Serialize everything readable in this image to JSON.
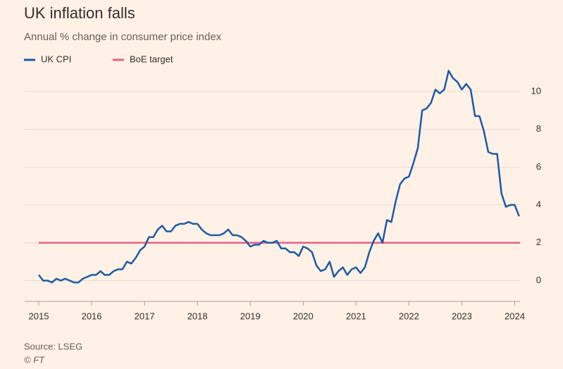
{
  "chart_data": {
    "type": "line",
    "title": "UK inflation falls",
    "subtitle": "Annual % change in consumer price index",
    "source": "Source: LSEG",
    "credit": "© FT",
    "xlim": [
      2015,
      2024.1
    ],
    "xticks": [
      2015,
      2016,
      2017,
      2018,
      2019,
      2020,
      2021,
      2022,
      2023,
      2024
    ],
    "ylim": [
      -1.1,
      11.3
    ],
    "yticks": [
      0,
      2,
      4,
      6,
      8,
      10
    ],
    "grid": true,
    "series": [
      {
        "name": "UK CPI",
        "color": "#1d5aa6",
        "x": [
          2015.0,
          2015.083,
          2015.167,
          2015.25,
          2015.333,
          2015.417,
          2015.5,
          2015.583,
          2015.667,
          2015.75,
          2015.833,
          2015.917,
          2016.0,
          2016.083,
          2016.167,
          2016.25,
          2016.333,
          2016.417,
          2016.5,
          2016.583,
          2016.667,
          2016.75,
          2016.833,
          2016.917,
          2017.0,
          2017.083,
          2017.167,
          2017.25,
          2017.333,
          2017.417,
          2017.5,
          2017.583,
          2017.667,
          2017.75,
          2017.833,
          2017.917,
          2018.0,
          2018.083,
          2018.167,
          2018.25,
          2018.333,
          2018.417,
          2018.5,
          2018.583,
          2018.667,
          2018.75,
          2018.833,
          2018.917,
          2019.0,
          2019.083,
          2019.167,
          2019.25,
          2019.333,
          2019.417,
          2019.5,
          2019.583,
          2019.667,
          2019.75,
          2019.833,
          2019.917,
          2020.0,
          2020.083,
          2020.167,
          2020.25,
          2020.333,
          2020.417,
          2020.5,
          2020.583,
          2020.667,
          2020.75,
          2020.833,
          2020.917,
          2021.0,
          2021.083,
          2021.167,
          2021.25,
          2021.333,
          2021.417,
          2021.5,
          2021.583,
          2021.667,
          2021.75,
          2021.833,
          2021.917,
          2022.0,
          2022.083,
          2022.167,
          2022.25,
          2022.333,
          2022.417,
          2022.5,
          2022.583,
          2022.667,
          2022.75,
          2022.833,
          2022.917,
          2023.0,
          2023.083,
          2023.167,
          2023.25,
          2023.333,
          2023.417,
          2023.5,
          2023.583,
          2023.667,
          2023.75,
          2023.833,
          2023.917,
          2024.0,
          2024.083
        ],
        "values": [
          0.3,
          0.0,
          0.0,
          -0.1,
          0.1,
          0.0,
          0.1,
          0.0,
          -0.1,
          -0.1,
          0.1,
          0.2,
          0.3,
          0.3,
          0.5,
          0.3,
          0.3,
          0.5,
          0.6,
          0.6,
          1.0,
          0.9,
          1.2,
          1.6,
          1.8,
          2.3,
          2.3,
          2.7,
          2.9,
          2.6,
          2.6,
          2.9,
          3.0,
          3.0,
          3.1,
          3.0,
          3.0,
          2.7,
          2.5,
          2.4,
          2.4,
          2.4,
          2.5,
          2.7,
          2.4,
          2.4,
          2.3,
          2.1,
          1.8,
          1.9,
          1.9,
          2.1,
          2.0,
          2.0,
          2.1,
          1.7,
          1.7,
          1.5,
          1.5,
          1.3,
          1.8,
          1.7,
          1.5,
          0.8,
          0.5,
          0.6,
          1.0,
          0.2,
          0.5,
          0.7,
          0.3,
          0.6,
          0.7,
          0.4,
          0.7,
          1.5,
          2.1,
          2.5,
          2.0,
          3.2,
          3.1,
          4.2,
          5.1,
          5.4,
          5.5,
          6.2,
          7.0,
          9.0,
          9.1,
          9.4,
          10.1,
          9.9,
          10.1,
          11.1,
          10.7,
          10.5,
          10.1,
          10.4,
          10.1,
          8.7,
          8.7,
          7.9,
          6.8,
          6.7,
          6.7,
          4.6,
          3.9,
          4.0,
          4.0,
          3.4
        ]
      },
      {
        "name": "BoE target",
        "color": "#e8608a",
        "x": [
          2015,
          2024.1
        ],
        "values": [
          2,
          2
        ]
      }
    ]
  }
}
